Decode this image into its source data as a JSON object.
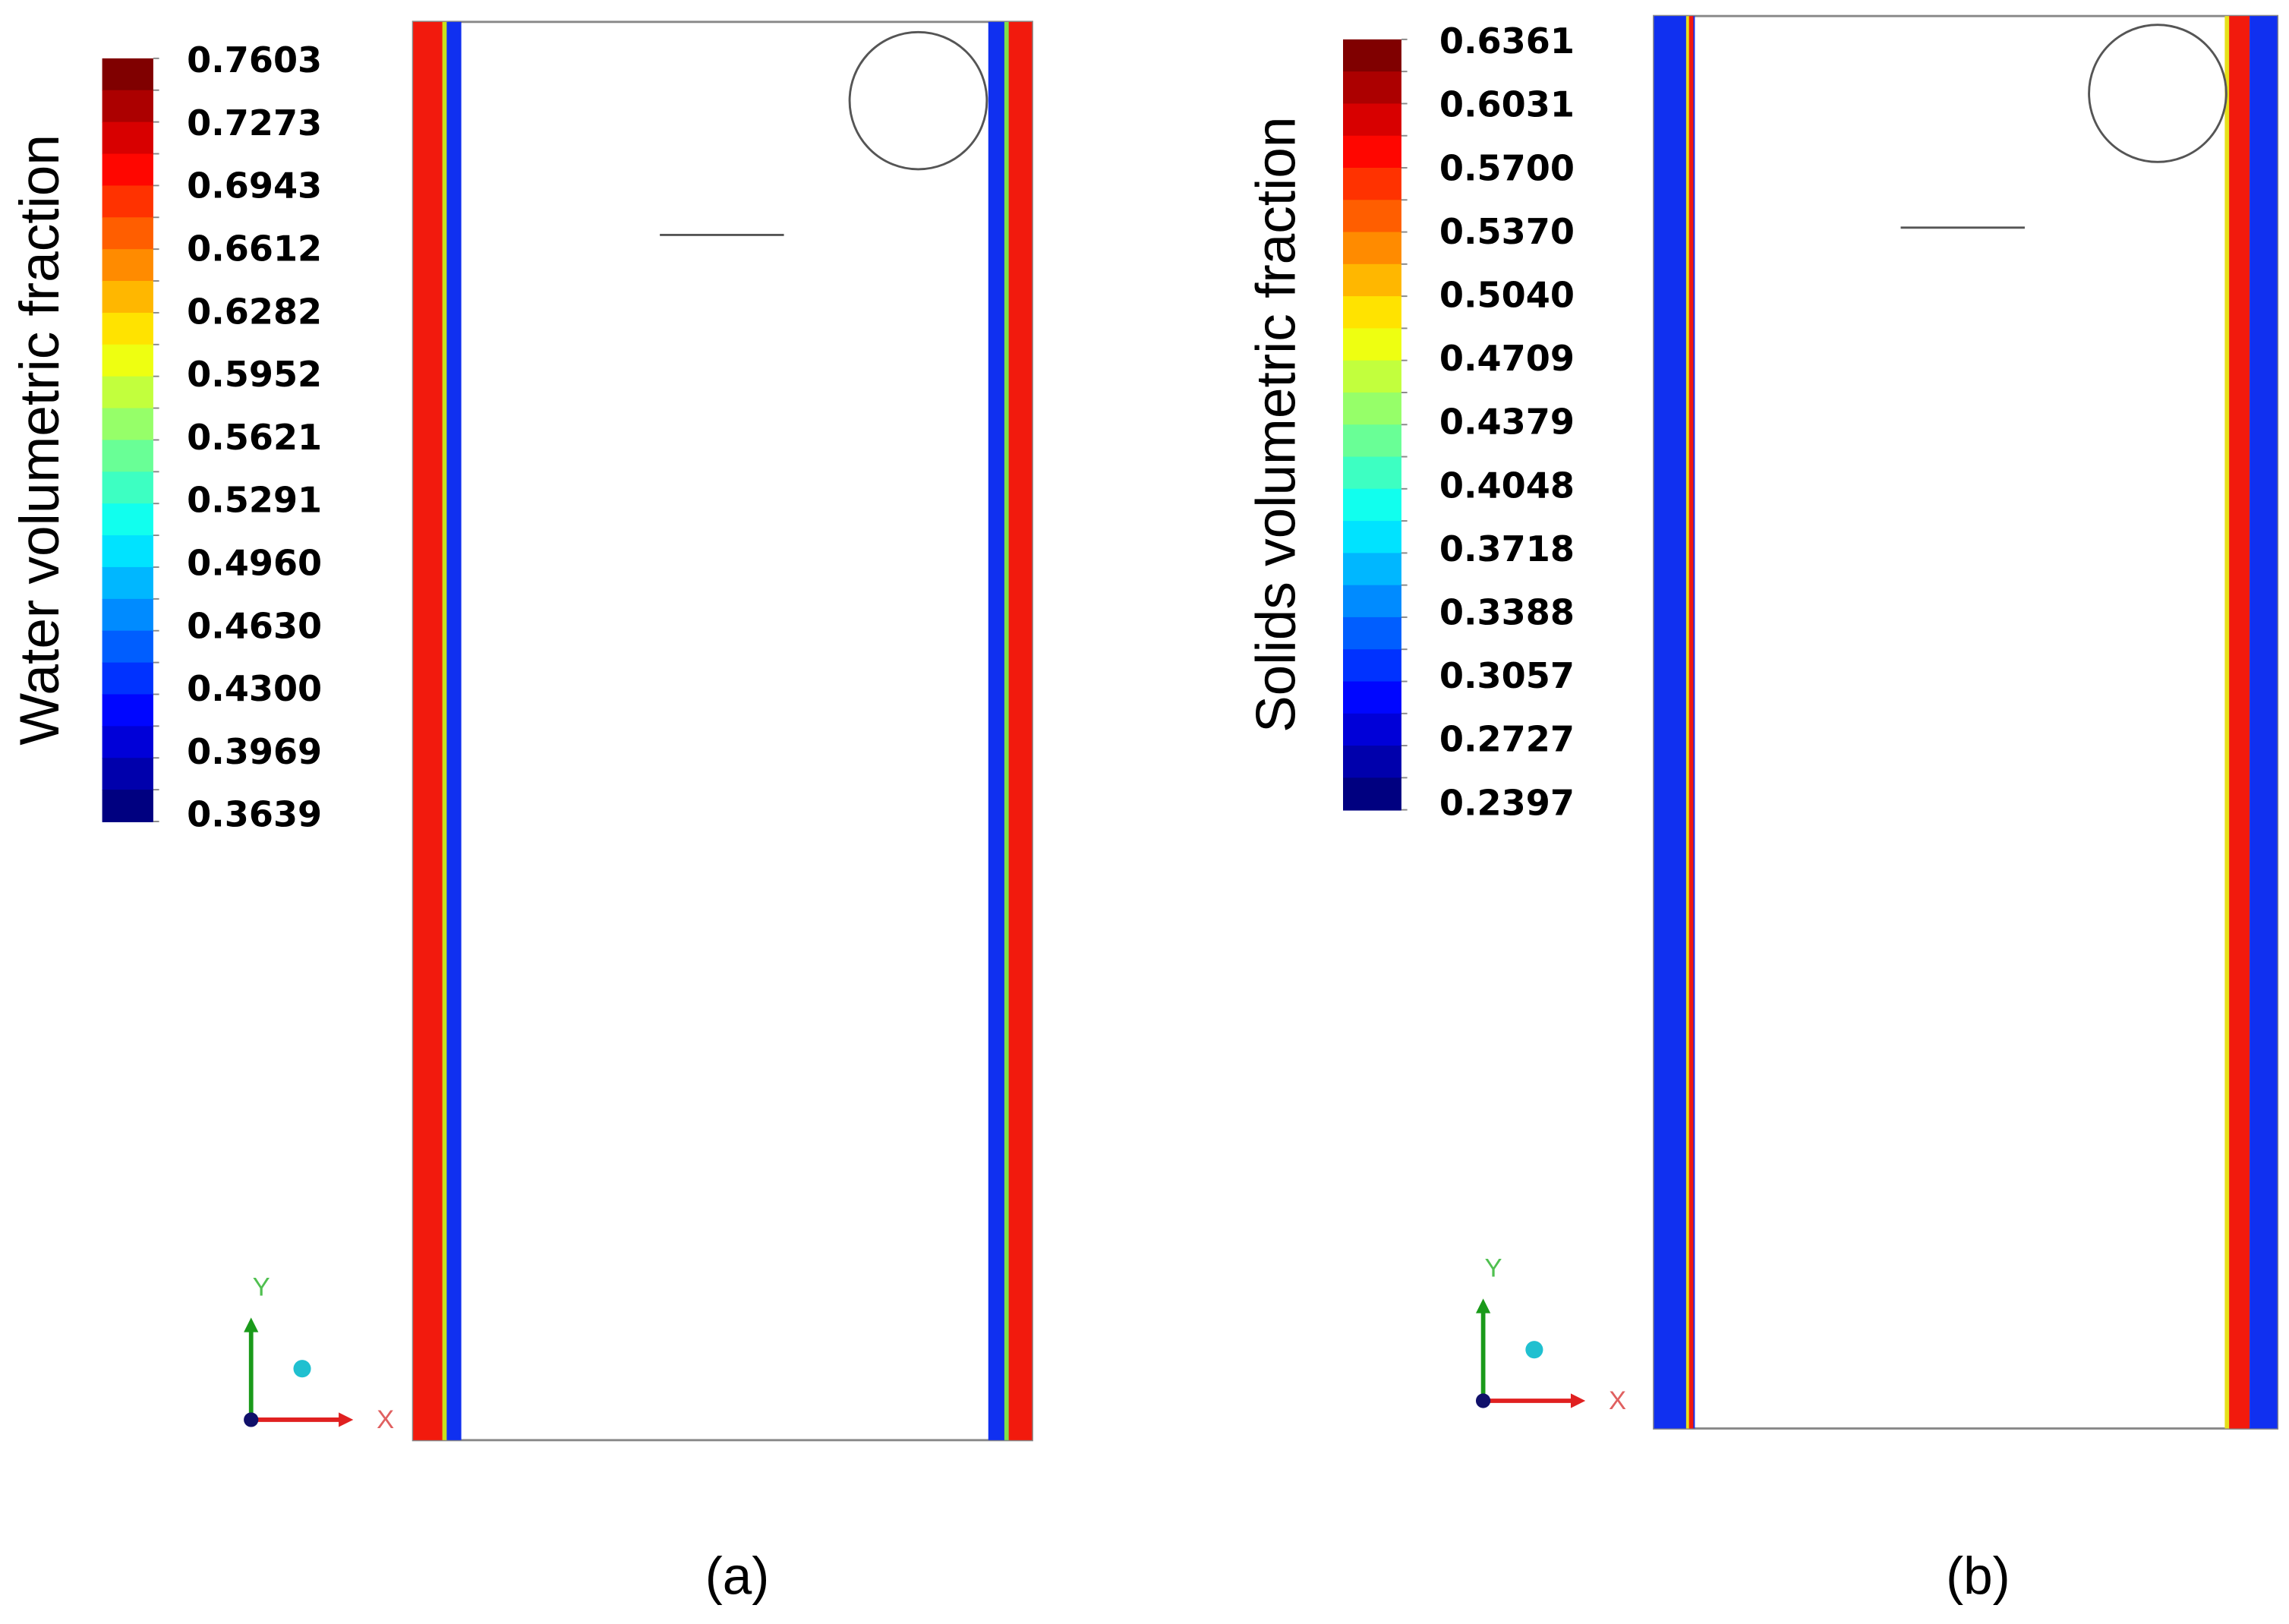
{
  "panels": [
    {
      "label": "(a)",
      "colorbar_title": "Water volumetric fraction",
      "colorbar_labels": [
        "0.7603",
        "0.7273",
        "0.6943",
        "0.6612",
        "0.6282",
        "0.5952",
        "0.5621",
        "0.5291",
        "0.4960",
        "0.4630",
        "0.4300",
        "0.3969",
        "0.3639"
      ],
      "axis_x": "X",
      "axis_y": "Y"
    },
    {
      "label": "(b)",
      "colorbar_title": "Solids volumetric fraction",
      "colorbar_labels": [
        "0.6361",
        "0.6031",
        "0.5700",
        "0.5370",
        "0.5040",
        "0.4709",
        "0.4379",
        "0.4048",
        "0.3718",
        "0.3388",
        "0.3057",
        "0.2727",
        "0.2397"
      ],
      "axis_x": "X",
      "axis_y": "Y"
    }
  ]
}
